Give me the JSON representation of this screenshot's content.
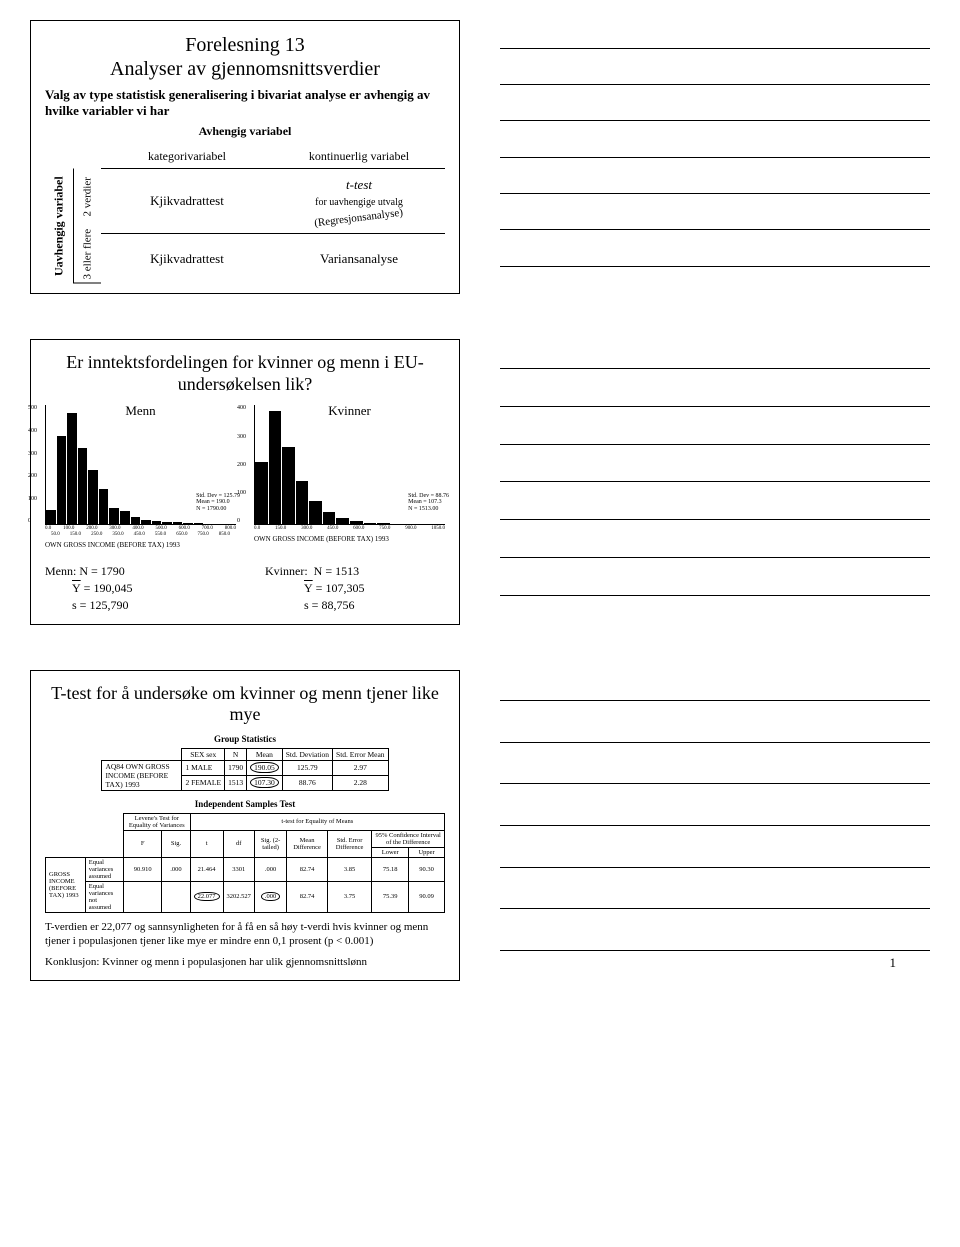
{
  "slide1": {
    "title1": "Forelesning 13",
    "title2": "Analyser av gjennomsnittsverdier",
    "subtitle": "Valg av type statistisk generalisering i bivariat analyse er avhengig av hvilke variabler vi har",
    "dep_var_label": "Avhengig variabel",
    "col_headers": [
      "kategorivariabel",
      "kontinuerlig variabel"
    ],
    "indep_label": "Uavhengig variabel",
    "row_labels": [
      "2 verdier",
      "3 eller flere"
    ],
    "cells": {
      "r1c1": "Kjikvadrattest",
      "r1c2_main": "t-test",
      "r1c2_sub": "for uavhengige utvalg",
      "r1c2_extra": "(Regresjonsanalyse)",
      "r2c1": "Kjikvadrattest",
      "r2c2": "Variansanalyse"
    }
  },
  "slide2": {
    "title": "Er inntektsfordelingen for kvinner og menn i EU-undersøkelsen lik?",
    "chart_menn": {
      "label": "Menn",
      "ymax": 500,
      "yticks": [
        "500",
        "400",
        "300",
        "200",
        "100",
        "0"
      ],
      "bars": [
        60,
        370,
        470,
        320,
        230,
        150,
        70,
        55,
        30,
        20,
        15,
        10,
        8,
        6,
        4,
        3,
        2,
        1
      ],
      "xticks": [
        "0.0",
        "100.0",
        "200.0",
        "300.0",
        "400.0",
        "500.0",
        "600.0",
        "700.0",
        "800.0"
      ],
      "xticks2": [
        "50.0",
        "150.0",
        "250.0",
        "350.0",
        "450.0",
        "550.0",
        "650.0",
        "750.0",
        "850.0"
      ],
      "side": [
        "Std. Dev = 125.79",
        "Mean = 190.0",
        "N = 1790.00"
      ],
      "caption": "OWN GROSS INCOME (BEFORE TAX) 1993"
    },
    "chart_kvinner": {
      "label": "Kvinner",
      "ymax": 400,
      "yticks": [
        "400",
        "300",
        "200",
        "100",
        "0"
      ],
      "bars": [
        210,
        380,
        260,
        145,
        80,
        40,
        20,
        10,
        6,
        4,
        2,
        1,
        1,
        1
      ],
      "xticks": [
        "0.0",
        "150.0",
        "300.0",
        "450.0",
        "600.0",
        "750.0",
        "900.0",
        "1050.0"
      ],
      "side": [
        "Std. Dev = 88.76",
        "Mean = 107.3",
        "N = 1513.00"
      ],
      "caption": "OWN GROSS INCOME (BEFORE TAX) 1993"
    },
    "stats_menn": {
      "head": "Menn:",
      "n": "N = 1790",
      "ybar": "Y = 190,045",
      "s": "s = 125,790"
    },
    "stats_kvinner": {
      "head": "Kvinner:",
      "n": "N = 1513",
      "ybar": "Y = 107,305",
      "s": "s = 88,756"
    }
  },
  "slide3": {
    "title": "T-test for å undersøke om kvinner og menn tjener like mye",
    "tbl1_title": "Group Statistics",
    "tbl1": {
      "cols": [
        "SEX  sex",
        "N",
        "Mean",
        "Std. Deviation",
        "Std. Error Mean"
      ],
      "rowlabel": "AQ84 OWN GROSS INCOME (BEFORE TAX) 1993",
      "rows": [
        [
          "1  MALE",
          "1790",
          "190.05",
          "125.79",
          "2.97"
        ],
        [
          "2  FEMALE",
          "1513",
          "107.30",
          "88.76",
          "2.28"
        ]
      ]
    },
    "tbl2_title": "Independent Samples Test",
    "tbl2": {
      "lev_header": "Levene's Test for Equality of Variances",
      "t_header": "t-test for Equality of Means",
      "ci_header": "95% Confidence Interval of the Difference",
      "cols": [
        "F",
        "Sig.",
        "t",
        "df",
        "Sig. (2-tailed)",
        "Mean Difference",
        "Std. Error Difference",
        "Lower",
        "Upper"
      ],
      "rowlabel": "GROSS INCOME (BEFORE TAX) 1993",
      "row1_label": "Equal variances assumed",
      "row2_label": "Equal variances not assumed",
      "rows": [
        [
          "90.910",
          ".000",
          "21.464",
          "3301",
          ".000",
          "82.74",
          "3.85",
          "75.18",
          "90.30"
        ],
        [
          "",
          "",
          "22.077",
          "3202.527",
          ".000",
          "82.74",
          "3.75",
          "75.39",
          "90.09"
        ]
      ]
    },
    "para": "T-verdien er 22,077 og sannsynligheten for å få en så høy t-verdi hvis kvinner og menn tjener i populasjonen tjener like mye er mindre enn 0,1 prosent (p < 0.001)",
    "conclusion": "Konklusjon: Kvinner og menn i populasjonen har ulik gjennomsnittslønn"
  },
  "page_number": "1"
}
